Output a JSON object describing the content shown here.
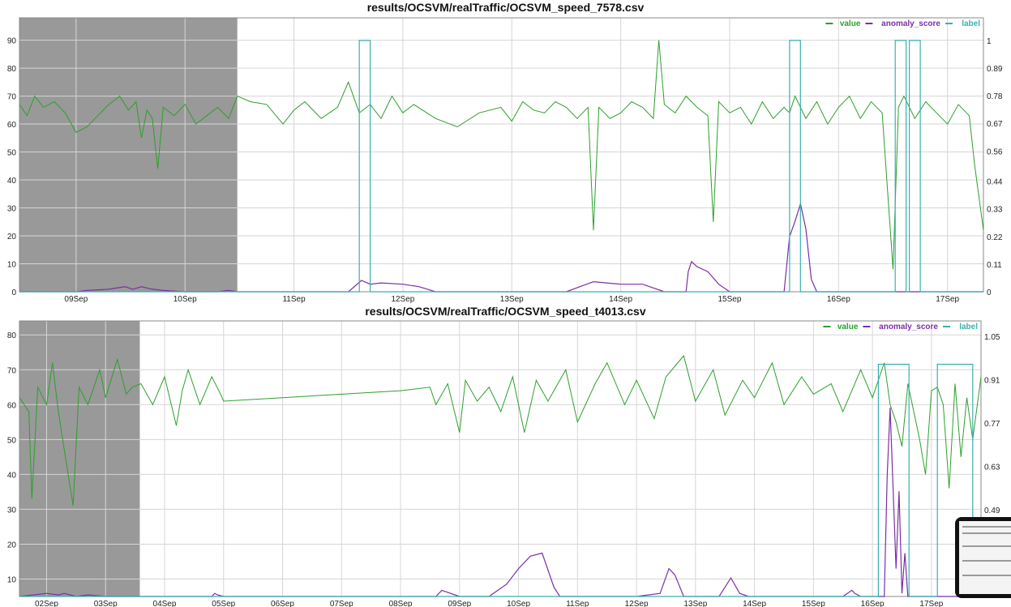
{
  "chart_data": [
    {
      "type": "line",
      "title": "results/OCSVM/realTraffic/OCSVM_speed_7578.csv",
      "legend": [
        "value",
        "anomaly_score",
        "label"
      ],
      "legend_position": "top-right",
      "colors": {
        "value": "#2ca02c",
        "anomaly_score": "#7b2fa6",
        "label": "#3ab0b0",
        "probation": "#999999"
      },
      "x_ticks": [
        "09Sep",
        "10Sep",
        "11Sep",
        "12Sep",
        "13Sep",
        "14Sep",
        "15Sep",
        "16Sep",
        "17Sep"
      ],
      "xlim": [
        -0.52,
        8.33
      ],
      "ylim": [
        0,
        98
      ],
      "y_ticks": [
        0,
        10,
        20,
        30,
        40,
        50,
        60,
        70,
        80,
        90
      ],
      "y2lim": [
        0,
        1.09
      ],
      "y2_ticks": [
        "0",
        "0.11",
        "0.22",
        "0.33",
        "0.44",
        "0.56",
        "0.67",
        "0.78",
        "0.89",
        "1"
      ],
      "probation": [
        -0.52,
        1.48
      ],
      "grid": true,
      "series": [
        {
          "name": "value",
          "axis": "left",
          "x": [
            -0.52,
            -0.45,
            -0.38,
            -0.3,
            -0.2,
            -0.1,
            0,
            0.1,
            0.2,
            0.3,
            0.4,
            0.48,
            0.55,
            0.6,
            0.65,
            0.7,
            0.75,
            0.8,
            0.9,
            1.0,
            1.1,
            1.2,
            1.3,
            1.4,
            1.48,
            1.6,
            1.75,
            1.9,
            2.0,
            2.1,
            2.25,
            2.4,
            2.5,
            2.6,
            2.7,
            2.8,
            2.9,
            3.0,
            3.1,
            3.3,
            3.5,
            3.7,
            3.9,
            4.0,
            4.1,
            4.2,
            4.3,
            4.4,
            4.5,
            4.6,
            4.7,
            4.75,
            4.8,
            4.9,
            5.0,
            5.1,
            5.2,
            5.3,
            5.35,
            5.4,
            5.5,
            5.6,
            5.7,
            5.8,
            5.85,
            5.9,
            6.0,
            6.1,
            6.2,
            6.3,
            6.4,
            6.5,
            6.55,
            6.6,
            6.7,
            6.8,
            6.9,
            7.0,
            7.1,
            7.2,
            7.3,
            7.4,
            7.5,
            7.55,
            7.6,
            7.7,
            7.8,
            7.9,
            8.0,
            8.1,
            8.2,
            8.25,
            8.33
          ],
          "values": [
            67,
            63,
            70,
            66,
            68,
            64,
            57,
            59,
            63,
            67,
            70,
            65,
            68,
            55,
            65,
            62,
            44,
            66,
            63,
            67,
            60,
            63,
            66,
            62,
            70,
            68,
            67,
            60,
            65,
            68,
            62,
            66,
            75,
            64,
            67,
            62,
            70,
            64,
            67,
            62,
            59,
            64,
            66,
            61,
            68,
            65,
            64,
            68,
            66,
            62,
            66,
            22,
            66,
            62,
            64,
            68,
            66,
            62,
            90,
            67,
            64,
            70,
            66,
            63,
            25,
            68,
            64,
            66,
            60,
            68,
            62,
            66,
            64,
            70,
            62,
            68,
            60,
            66,
            70,
            62,
            68,
            64,
            8,
            66,
            70,
            62,
            68,
            64,
            60,
            67,
            63,
            45,
            22
          ]
        },
        {
          "name": "anomaly_score",
          "axis": "right",
          "x": [
            -0.52,
            0,
            0.1,
            0.3,
            0.45,
            0.52,
            0.6,
            0.7,
            0.8,
            1.0,
            1.3,
            1.4,
            1.48,
            2.0,
            2.5,
            2.62,
            2.7,
            2.8,
            3.0,
            3.15,
            3.3,
            3.5,
            4.0,
            4.5,
            4.75,
            5.0,
            5.2,
            5.4,
            5.5,
            5.6,
            5.62,
            5.65,
            5.7,
            5.8,
            5.9,
            6.0,
            6.5,
            6.55,
            6.6,
            6.65,
            6.7,
            6.75,
            6.8,
            6.85,
            7.0,
            7.5,
            8.0,
            8.33
          ],
          "values": [
            0,
            0,
            0.005,
            0.01,
            0.02,
            0.01,
            0.02,
            0.01,
            0.005,
            0,
            0,
            0.005,
            0,
            0,
            0,
            0.045,
            0.03,
            0.035,
            0.03,
            0.02,
            0,
            0,
            0,
            0,
            0.04,
            0.03,
            0.03,
            0,
            0,
            0,
            0.08,
            0.12,
            0.1,
            0.08,
            0.03,
            0,
            0,
            0.22,
            0.28,
            0.35,
            0.25,
            0.05,
            0,
            0,
            0,
            0,
            0,
            0
          ]
        },
        {
          "name": "label",
          "axis": "right",
          "x": [
            -0.52,
            2.6,
            2.6,
            2.7,
            2.7,
            6.55,
            6.55,
            6.65,
            6.65,
            7.52,
            7.52,
            7.62,
            7.62,
            7.65,
            7.65,
            7.75,
            7.75,
            8.33
          ],
          "values": [
            0,
            0,
            1,
            1,
            0,
            0,
            1,
            1,
            0,
            0,
            1,
            1,
            0,
            0,
            1,
            1,
            0,
            0
          ]
        }
      ]
    },
    {
      "type": "line",
      "title": "results/OCSVM/realTraffic/OCSVM_speed_t4013.csv",
      "legend": [
        "value",
        "anomaly_score",
        "label"
      ],
      "legend_position": "top-right",
      "colors": {
        "value": "#2ca02c",
        "anomaly_score": "#7b2fa6",
        "label": "#3ab0b0",
        "probation": "#999999"
      },
      "x_ticks": [
        "02Sep",
        "03Sep",
        "04Sep",
        "05Sep",
        "06Sep",
        "07Sep",
        "08Sep",
        "09Sep",
        "10Sep",
        "11Sep",
        "12Sep",
        "13Sep",
        "14Sep",
        "15Sep",
        "16Sep",
        "17Sep"
      ],
      "xlim": [
        -0.46,
        15.84
      ],
      "ylim": [
        5,
        84
      ],
      "y_ticks": [
        10,
        20,
        30,
        40,
        50,
        60,
        70,
        80
      ],
      "y2lim": [
        0.21,
        1.1
      ],
      "y2_ticks": [
        "0.36",
        "0.49",
        "0.63",
        "0.77",
        "0.91",
        "1.05"
      ],
      "probation": [
        -0.46,
        1.58
      ],
      "grid": true,
      "series": [
        {
          "name": "value",
          "axis": "left",
          "x": [
            -0.46,
            -0.3,
            -0.25,
            -0.15,
            0,
            0.1,
            0.2,
            0.3,
            0.45,
            0.55,
            0.7,
            0.9,
            1.0,
            1.2,
            1.35,
            1.45,
            1.6,
            1.8,
            2.0,
            2.2,
            2.3,
            2.4,
            2.6,
            2.8,
            2.95,
            3.0,
            4.0,
            5.0,
            6.0,
            6.5,
            6.6,
            6.8,
            7.0,
            7.1,
            7.3,
            7.5,
            7.7,
            7.9,
            8.1,
            8.3,
            8.5,
            8.8,
            9.0,
            9.3,
            9.5,
            9.8,
            10.0,
            10.3,
            10.5,
            10.8,
            11.0,
            11.3,
            11.5,
            11.8,
            12.0,
            12.3,
            12.5,
            12.8,
            13.0,
            13.3,
            13.5,
            13.8,
            14.0,
            14.2,
            14.3,
            14.4,
            14.5,
            14.6,
            14.7,
            14.8,
            14.9,
            15.0,
            15.1,
            15.2,
            15.3,
            15.4,
            15.5,
            15.6,
            15.7,
            15.84
          ],
          "values": [
            62,
            58,
            33,
            65,
            60,
            72,
            58,
            47,
            31,
            65,
            60,
            70,
            62,
            73,
            63,
            65,
            66,
            60,
            68,
            54,
            64,
            70,
            60,
            68,
            63,
            61,
            62,
            63,
            64,
            65,
            60,
            66,
            52,
            67,
            61,
            65,
            58,
            68,
            52,
            67,
            61,
            70,
            55,
            66,
            72,
            60,
            67,
            56,
            68,
            74,
            61,
            70,
            57,
            67,
            62,
            72,
            60,
            68,
            63,
            66,
            58,
            70,
            62,
            72,
            60,
            55,
            48,
            66,
            58,
            50,
            40,
            64,
            65,
            60,
            36,
            66,
            45,
            62,
            50,
            68
          ]
        },
        {
          "name": "anomaly_score",
          "axis": "right",
          "x": [
            -0.46,
            0,
            0.2,
            0.3,
            0.5,
            0.7,
            1.0,
            1.5,
            2.0,
            2.5,
            2.8,
            2.85,
            2.9,
            3.0,
            4.0,
            5.0,
            6.0,
            6.6,
            6.7,
            7.0,
            7.5,
            7.8,
            8.0,
            8.2,
            8.4,
            8.6,
            8.7,
            8.8,
            9.0,
            9.5,
            10.0,
            10.4,
            10.55,
            10.65,
            10.8,
            11.0,
            11.4,
            11.6,
            11.75,
            11.9,
            12.0,
            12.5,
            13.0,
            13.5,
            13.65,
            13.7,
            13.8,
            14.0,
            14.2,
            14.25,
            14.3,
            14.4,
            14.45,
            14.5,
            14.55,
            14.6,
            14.7,
            14.8,
            15.0,
            15.5,
            15.84
          ],
          "values": [
            0.21,
            0.22,
            0.215,
            0.22,
            0.21,
            0.215,
            0.21,
            0.21,
            0.21,
            0.21,
            0.21,
            0.22,
            0.215,
            0.21,
            0.21,
            0.21,
            0.21,
            0.21,
            0.23,
            0.21,
            0.21,
            0.25,
            0.3,
            0.34,
            0.35,
            0.24,
            0.21,
            0.21,
            0.21,
            0.21,
            0.21,
            0.22,
            0.3,
            0.28,
            0.21,
            0.21,
            0.21,
            0.27,
            0.22,
            0.21,
            0.21,
            0.21,
            0.21,
            0.21,
            0.23,
            0.22,
            0.21,
            0.21,
            0.21,
            0.6,
            0.82,
            0.3,
            0.55,
            0.22,
            0.35,
            0.21,
            0.21,
            0.21,
            0.21,
            0.21,
            0.21
          ]
        },
        {
          "name": "label",
          "axis": "right",
          "x": [
            -0.46,
            14.1,
            14.1,
            14.62,
            14.62,
            15.1,
            15.1,
            15.7,
            15.7,
            15.84
          ],
          "values": [
            0.21,
            0.21,
            0.96,
            0.96,
            0.21,
            0.21,
            0.96,
            0.96,
            0.21,
            0.21
          ]
        }
      ]
    }
  ]
}
